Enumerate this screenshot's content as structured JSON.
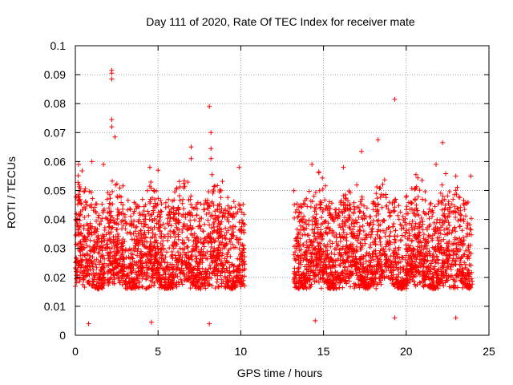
{
  "chart_data": {
    "type": "scatter",
    "title": "Day 111 of 2020, Rate Of TEC Index for receiver mate",
    "xlabel": "GPS time / hours",
    "ylabel": "ROTI / TECUs",
    "xlim": [
      0,
      25
    ],
    "ylim": [
      0,
      0.1
    ],
    "x_ticks": [
      "0",
      "5",
      "10",
      "15",
      "20",
      "25"
    ],
    "y_ticks": [
      "0",
      "0.01",
      "0.02",
      "0.03",
      "0.04",
      "0.05",
      "0.06",
      "0.07",
      "0.08",
      "0.09",
      "0.1"
    ],
    "grid": true,
    "marker": "+",
    "color": "#ff0000",
    "segments": [
      {
        "x_start": 0.0,
        "x_end": 10.25
      },
      {
        "x_start": 13.2,
        "x_end": 24.0
      }
    ],
    "typical_range": [
      0.005,
      0.06
    ],
    "notable_points": [
      {
        "x": 2.2,
        "y": 0.0915
      },
      {
        "x": 2.2,
        "y": 0.0905
      },
      {
        "x": 2.2,
        "y": 0.0885
      },
      {
        "x": 2.2,
        "y": 0.0745
      },
      {
        "x": 2.2,
        "y": 0.072
      },
      {
        "x": 2.4,
        "y": 0.0685
      },
      {
        "x": 8.1,
        "y": 0.079
      },
      {
        "x": 8.2,
        "y": 0.07
      },
      {
        "x": 8.2,
        "y": 0.0645
      },
      {
        "x": 8.2,
        "y": 0.061
      },
      {
        "x": 7.0,
        "y": 0.065
      },
      {
        "x": 7.0,
        "y": 0.061
      },
      {
        "x": 19.3,
        "y": 0.0815
      },
      {
        "x": 18.3,
        "y": 0.0675
      },
      {
        "x": 22.2,
        "y": 0.0665
      },
      {
        "x": 17.3,
        "y": 0.0635
      },
      {
        "x": 0.2,
        "y": 0.059
      },
      {
        "x": 1.0,
        "y": 0.06
      },
      {
        "x": 1.7,
        "y": 0.059
      },
      {
        "x": 4.5,
        "y": 0.058
      },
      {
        "x": 5.0,
        "y": 0.057
      },
      {
        "x": 9.9,
        "y": 0.058
      },
      {
        "x": 14.3,
        "y": 0.059
      },
      {
        "x": 16.2,
        "y": 0.058
      },
      {
        "x": 21.8,
        "y": 0.059
      },
      {
        "x": 23.0,
        "y": 0.055
      },
      {
        "x": 23.9,
        "y": 0.055
      },
      {
        "x": 8.1,
        "y": 0.004
      },
      {
        "x": 0.8,
        "y": 0.004
      },
      {
        "x": 4.6,
        "y": 0.0045
      },
      {
        "x": 14.5,
        "y": 0.005
      },
      {
        "x": 19.3,
        "y": 0.006
      },
      {
        "x": 23.0,
        "y": 0.006
      }
    ]
  }
}
